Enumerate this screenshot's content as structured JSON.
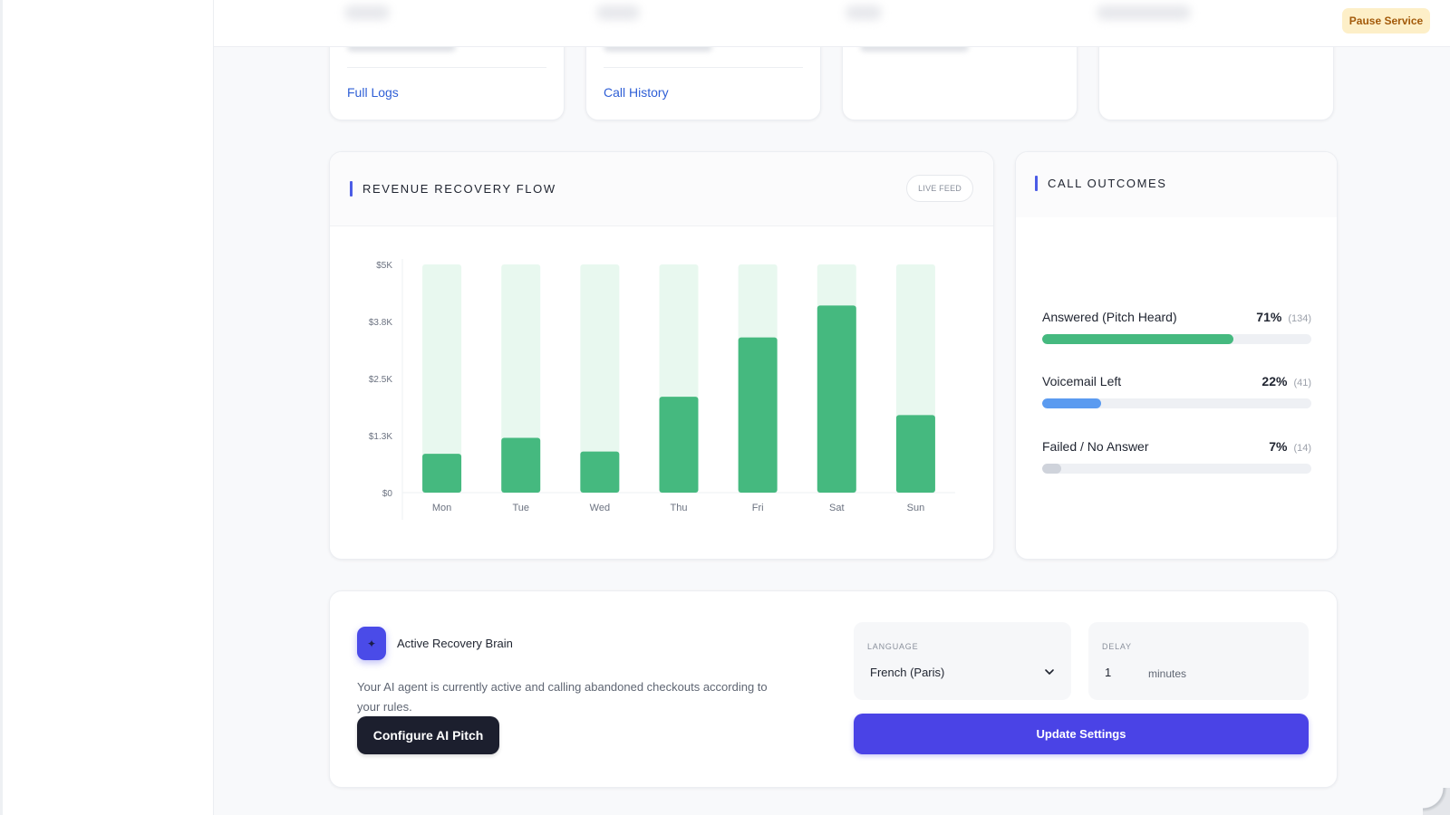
{
  "topbar": {
    "pause_label": "Pause Service"
  },
  "stat_cards": [
    {
      "link": "Full Logs"
    },
    {
      "link": "Call History"
    },
    {
      "link": ""
    },
    {
      "link": ""
    }
  ],
  "revenue": {
    "title": "REVENUE RECOVERY FLOW",
    "badge": "LIVE FEED"
  },
  "chart_data": {
    "type": "bar",
    "categories": [
      "Mon",
      "Tue",
      "Wed",
      "Thu",
      "Fri",
      "Sat",
      "Sun"
    ],
    "series": [
      {
        "values": [
          850,
          1200,
          900,
          2100,
          3400,
          4100,
          1700
        ]
      }
    ],
    "capacity": 5000,
    "ylim": [
      0,
      5000
    ],
    "yticks": [
      0,
      1250,
      2500,
      3750,
      5000
    ],
    "ytick_labels": [
      "$0",
      "$1.3K",
      "$2.5K",
      "$3.8K",
      "$5K"
    ],
    "bar_color": "#45b97f",
    "capacity_color": "#e8f8ef",
    "grid": false
  },
  "outcomes": {
    "title": "CALL OUTCOMES",
    "items": [
      {
        "label": "Answered (Pitch Heard)",
        "percent": 71,
        "percent_label": "71%",
        "count_label": "(134)",
        "color": "#45b97f"
      },
      {
        "label": "Voicemail Left",
        "percent": 22,
        "percent_label": "22%",
        "count_label": "(41)",
        "color": "#5b9bf0"
      },
      {
        "label": "Failed / No Answer",
        "percent": 7,
        "percent_label": "7%",
        "count_label": "(14)",
        "color": "#cfd3db"
      }
    ]
  },
  "settings": {
    "brain_title": "Active Recovery Brain",
    "brain_desc": "Your AI agent is currently active and calling abandoned checkouts according to your rules.",
    "configure_label": "Configure AI Pitch",
    "language_label": "LANGUAGE",
    "language_value": "French (Paris)",
    "delay_label": "DELAY",
    "delay_value": "1",
    "delay_unit": "minutes",
    "update_label": "Update Settings"
  },
  "colors": {
    "accent": "#4a43e6",
    "success": "#45b97f",
    "warning_bg": "#fdefc8"
  }
}
